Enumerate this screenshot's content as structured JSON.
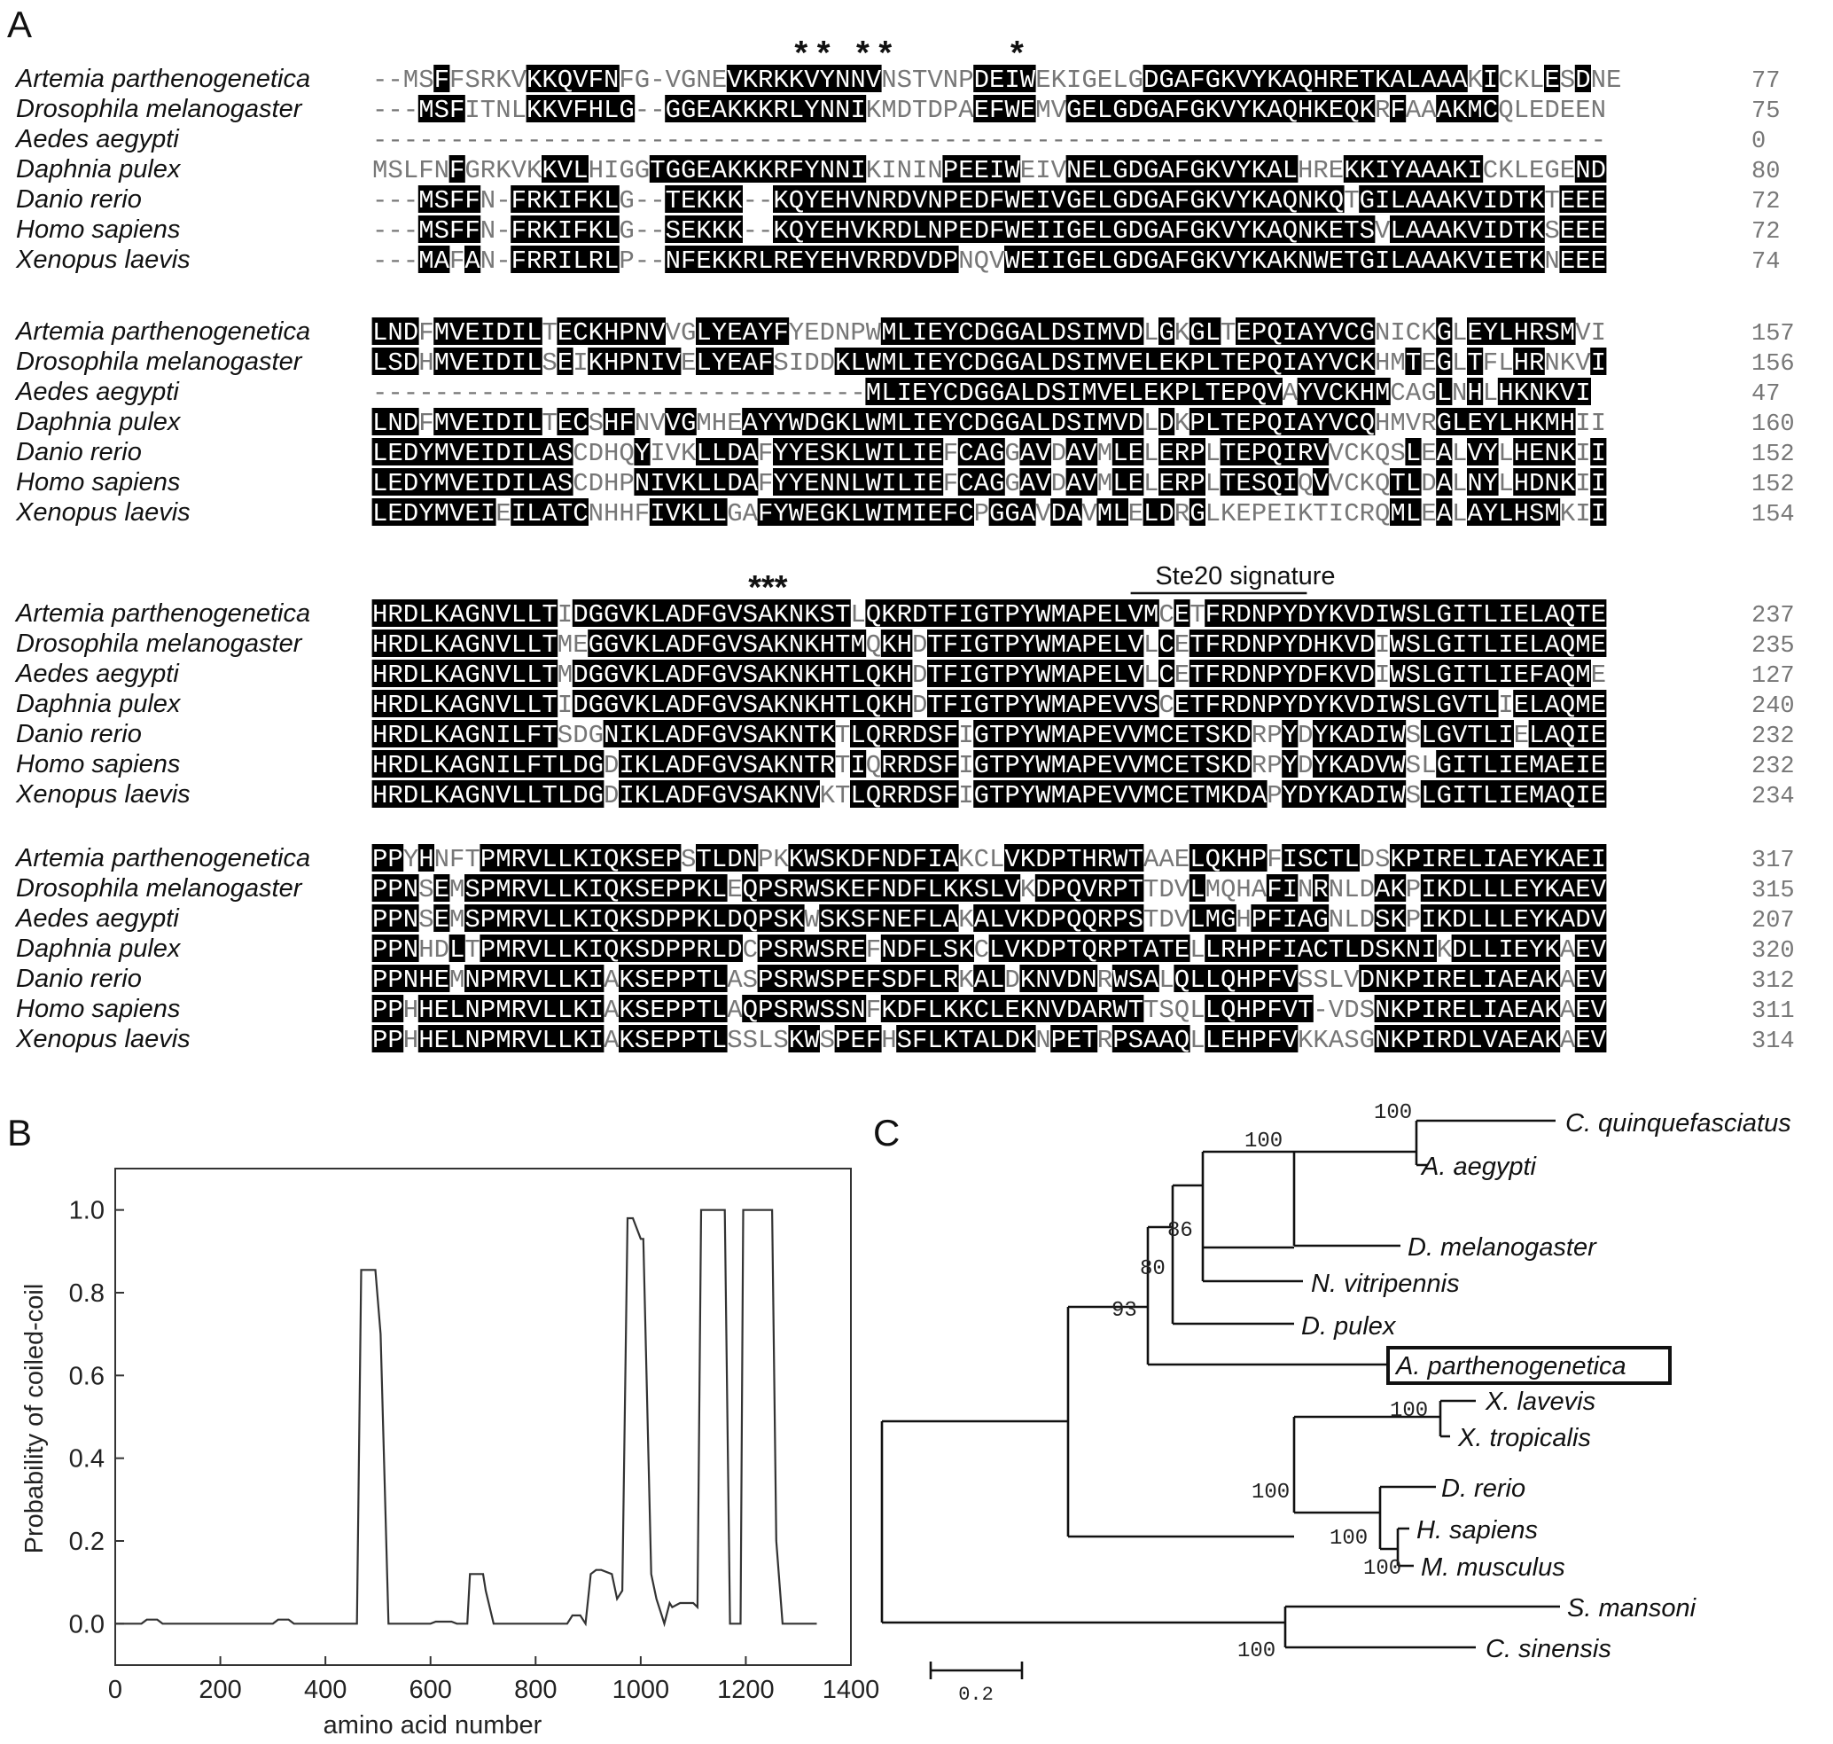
{
  "panels": {
    "a": "A",
    "b": "B",
    "c": "C"
  },
  "alignment": {
    "blocks": [
      {
        "stars": [
          {
            "text": "* *",
            "col": 26
          },
          {
            "text": "* *",
            "col": 30
          },
          {
            "text": "*",
            "col": 40
          }
        ],
        "rows": [
          {
            "species": "Artemia parthenogenetica",
            "seq": "--MSFFSRKVKKQVFNFG-VGNEVKRKKVYNNVNSTVNPDEIWEKIGELGDGAFGKVYKAQHRETKALAAAKICKLESDNE",
            "num": "77",
            "mask": "0000100000111111001000011111111110000001111000000011111111111111111111101000101001"
          },
          {
            "species": "Drosophila melanogaster",
            "seq": "---MSFITNLKKVFHLG--GGEAKKKRLYNNIKMDTDPAEFWEMVGELGDGAFGKVYKAQHKEQKRFAAAKMCQLEDEEN",
            "num": "75",
            "mask": "0001110000111111100111111111111100000001111001111111111111111111101001111000000001"
          },
          {
            "species": "Aedes aegypti",
            "seq": "--------------------------------------------------------------------------------",
            "num": "0",
            "mask": ""
          },
          {
            "species": "Daphnia pulex",
            "seq": "MSLFNFGRKVKKVLHIGGTGGEAKKKRFYNNIKININPEEIWEIVNELGDGAFGKVYKALHREKKIYAAAKICKLEGEND",
            "num": "80",
            "mask": "00000100000111000011111111111111000001111100011111111111111100011111111100000011111"
          },
          {
            "species": "Danio rerio",
            "seq": "---MSFFN-FRKIFKLG--TEKKK--KQYEHVNRDVNPEDFWEIVGELGDGAFGKVYKAQNKQTGILAAAKVIDTKTEEE",
            "num": "72",
            "mask": "00011110111111110011111100111111111111111111111111111111111111101111111111110111111"
          },
          {
            "species": "Homo sapiens",
            "seq": "---MSFFN-FRKIFKLG--SEKKK--KQYEHVKRDLNPEDFWEIIGELGDGAFGKVYKAQNKETSVLAAAKVIDTKSEEE",
            "num": "72",
            "mask": "00011110111111110011111100111111111111111111111111111111111111111011111111110111111"
          },
          {
            "species": "Xenopus laevis",
            "seq": "---MAFAN-FRRILRLP--NFEKKRLREYEHVRRDVDPNQVWEIIGELGDGAFGKVYKAKNWETGILAAAKVIETKNEEE",
            "num": "74",
            "mask": "00011010111111110011111111111111111111000111111111111111111111111111111111110111111"
          }
        ]
      },
      {
        "stars": [],
        "rows": [
          {
            "species": "Artemia parthenogenetica",
            "seq": "LNDFMVEIDILTECKHPNVVGLYEAYFYEDNPWMLIEYCDGGALDSIMVDLGKGLTEPQIAYVCGNICKGLEYLHRSMVI",
            "num": "157",
            "mask": "11101111111011111110011111100000011111111111111111010110111111111000010111111100001"
          },
          {
            "species": "Drosophila melanogaster",
            "seq": "LSDHMVEIDILSEIKHPNIVELYEAFSIDDKLWMLIEYCDGGALDSIMVELEKPLTEPQIAYVCKHMTEGLTFLHRNKVI",
            "num": "156",
            "mask": "11101111111010111111011111000011111111111111111111111111111111111001010100110001"
          },
          {
            "species": "Aedes aegypti",
            "seq": "--------------------------------MLIEYCDGGALDSIMVELEKPLTEPQVAYVCKHMCAGLNHLHKNKVI",
            "num": "47",
            "mask": "00000000000000000000000000000000111111111111111111111111111011111100010101111111"
          },
          {
            "species": "Daphnia pulex",
            "seq": "LNDFMVEIDILTECSHFNVVGMHEAYYWDGKLWMLIEYCDGGALDSIMVDLDKPLTEPQIAYVCQHMVRGLEYLHKMHII",
            "num": "160",
            "mask": "11101111111011011001100011111111111111111111111111010111111111111000011111111100111"
          },
          {
            "species": "Danio rerio",
            "seq": "LEDYMVEIDILASCDHQYIVKLLDAFYYESKLWILIEFCAGGAVDAVMLELERPLTEPQIRVVCKQSLEALVYLHENKII",
            "num": "152",
            "mask": "11111111111110000100011110111111111110111011011011011101111111000001010110111101111"
          },
          {
            "species": "Homo sapiens",
            "seq": "LEDYMVEIDILASCDHPNIVKLLDAFYYENNLWILIEFCAGGAVDAVMLELERPLTESQIQVVCKQTLDALNYLHDNKII",
            "num": "152",
            "mask": "11111111111110000111111110111111111110111011011011011101111101000011010110111101111"
          },
          {
            "species": "Xenopus laevis",
            "seq": "LEDYMVEIEILATCNHHFIVKLLGAFYWEGKLWIMIEFCPGGAVDAVMLELDRGLKEPEIKTICRQMLEALAYLHSMKII",
            "num": "154",
            "mask": "11111111011111000011111001111111111111101110110110110100000000000011010111111001111"
          }
        ]
      },
      {
        "stars": [
          {
            "text": "***",
            "col": 23
          }
        ],
        "signature": {
          "text": "Ste20 signature",
          "col_start": 44,
          "col_end": 56
        },
        "rows": [
          {
            "species": "Artemia parthenogenetica",
            "seq": "HRDLKAGNVLLTIDGGVKLADFGVSAKNKSTLQKRDTFIGTPYWMAPELVMCETFRDNPYDYKVDIWSLGITLIELAQTE",
            "num": "237",
            "mask": "11111111111101111111111111111110111111111111111111101011111111111111111111111111110"
          },
          {
            "species": "Drosophila melanogaster",
            "seq": "HRDLKAGNVLLTMEGGVKLADFGVSAKNKHTMQKHDTFIGTPYWMAPELVLCETFRDNPYDHKVDIWSLGITLIELAQME",
            "num": "235",
            "mask": "11111111111100111111111111111111011011111111111111010111111111111011111111111111111"
          },
          {
            "species": "Aedes aegypti",
            "seq": "HRDLKAGNVLLTMDGGVKLADFGVSAKNKHTLQKHDTFIGTPYWMAPELVLCETFRDNPYDFKVDIWSLGITLIEFAQME",
            "num": "127",
            "mask": "11111111111101111111111111111111111011111111111111010111111111111011111111111110111"
          },
          {
            "species": "Daphnia pulex",
            "seq": "HRDLKAGNVLLTIDGGVKLADFGVSAKNKHTLQKHDTFIGTPYWMAPEVVSCETFRDNPYDYKVDIWSLGVTLIELAQME",
            "num": "240",
            "mask": "11111111111101111111111111111111111011111111111111101111111111111111111110111111111"
          },
          {
            "species": "Danio rerio",
            "seq": "HRDLKAGNILFTSDGNIKLADFGVSAKNTKTLQRRDSFIGTPYWMAPEVVMCETSKDRPYDYKADIWSLGVTLIELAQIE",
            "num": "232",
            "mask": "11111111111100011111111111111101111111011111111111111111100101111110111111011111111"
          },
          {
            "species": "Homo sapiens",
            "seq": "HRDLKAGNILFTLDGDIKLADFGVSAKNTRTIQRRDSFIGTPYWMAPEVVMCETSKDRPYDYKADVWSLGITLIEMAEIE",
            "num": "232",
            "mask": "11111111111111101111111111111101011111011111111111111111100101111110011111111111010"
          },
          {
            "species": "Xenopus laevis",
            "seq": "HRDLKAGNVLLTLDGDIKLADFGVSAKNVKTLQRRDSFIGTPYWMAPEVVMCETMKDAPYDYKADIWSLGITLIEMAQIE",
            "num": "234",
            "mask": "11111111111111101111111111111001111111011111111111111111110111111110111111111111011"
          }
        ]
      },
      {
        "stars": [],
        "rows": [
          {
            "species": "Artemia parthenogenetica",
            "seq": "PPYHNFTPMRVLLKIQKSEPSTLDNPKKWSKDFNDFIAKCLVKDPTHRWTAAELQKHPFISCTLDSKPIRELIAEYKAEI",
            "num": "317",
            "mask": "11010001111111111111011110011111111111000111111111000111110111110011111111111111110"
          },
          {
            "species": "Drosophila melanogaster",
            "seq": "PPNSEMSPMRVLLKIQKSEPPKLEQPSRWSKEFNDFLKKSLVKDPQVRPTTDVLMQHAFINRNLDAKPIKDLLLEYKAEV",
            "num": "315",
            "mask": "11101011111111111111111011111111111111111101111111000100001101000110111111111111111"
          },
          {
            "species": "Aedes aegypti",
            "seq": "PPNSEMSPMRVLLKIQKSDPPKLDQPSKWSKSFNEFLAKALVKDPQQRPSTDVLMGHPFIAGNLDSKPIKDLLLEYKADV",
            "num": "207",
            "mask": "11101011111111111111111111110111111111011111111111000111011111000110111111111111111"
          },
          {
            "species": "Daphnia pulex",
            "seq": "PPNHDLTPMRVLLKIQKSDPPRLDCPSRWSREFNDFLSKCLVKDPTQRPTATELLRHPFIACTLDSKNIKDLLIEYKAEV",
            "num": "320",
            "mask": "11100101111111111111111101111111011111101111111111111011111111111111101111111011111"
          },
          {
            "species": "Danio rerio",
            "seq": "PPNHEMNPMRVLLKIAKSEPPTLASPSRWSPEFSDFLRKALDKNVDNRWSALQLLQHPFVSSLVDNKPIRELIAEAKAEV",
            "num": "312",
            "mask": "11111011111111101111111001111111111111011011111011101111111100001111111111111011111"
          },
          {
            "species": "Homo sapiens",
            "seq": "PPHHELNPMRVLLKIAKSEPPTLAQPSRWSSNFKDFLKKCLEKNVDARWTTSQLLQHPFVT-VDSNKPIRELIAEAKAEV",
            "num": "311",
            "mask": "11011111111111101111111011111111011111111111111111000011111110000111111111111011111"
          },
          {
            "species": "Xenopus laevis",
            "seq": "PPHHELNPMRVLLKIAKSEPPTLSSLSKWSPEFHSFLKTALDKNPETRPSAAQLLEHPFVKKASGNKPIRDLVAEAKAEV",
            "num": "314",
            "mask": "11011111111111101111111000011011101111111110111011111011111100000111111111111011111"
          }
        ]
      }
    ]
  },
  "coil_chart": {
    "chart_data": {
      "type": "line",
      "title": "",
      "xlabel": "amino acid number",
      "ylabel": "Probability of coiled-coil",
      "xlim": [
        0,
        1400
      ],
      "ylim": [
        -0.1,
        1.1
      ],
      "xticks": [
        "0",
        "200",
        "400",
        "600",
        "800",
        "1000",
        "1200",
        "1400"
      ],
      "yticks": [
        "0.0",
        "0.2",
        "0.4",
        "0.6",
        "0.8",
        "1.0"
      ],
      "series": [
        {
          "x": [
            0,
            50,
            60,
            80,
            90,
            300,
            310,
            330,
            340,
            460,
            468,
            495,
            505,
            520,
            600,
            610,
            640,
            650,
            670,
            675,
            700,
            705,
            720,
            860,
            870,
            885,
            895,
            905,
            915,
            925,
            945,
            955,
            960,
            965,
            975,
            985,
            1000,
            1005,
            1020,
            1030,
            1040,
            1045,
            1055,
            1060,
            1075,
            1080,
            1100,
            1108,
            1115,
            1125,
            1160,
            1170,
            1190,
            1195,
            1205,
            1215,
            1250,
            1258,
            1270,
            1335
          ],
          "y": [
            0.0,
            0.0,
            0.01,
            0.01,
            0.0,
            0.0,
            0.01,
            0.01,
            0.0,
            0.0,
            0.855,
            0.855,
            0.7,
            0.0,
            0.0,
            0.005,
            0.005,
            0.0,
            0.0,
            0.12,
            0.12,
            0.08,
            0.0,
            0.0,
            0.02,
            0.02,
            0.0,
            0.12,
            0.13,
            0.13,
            0.12,
            0.06,
            0.07,
            0.08,
            0.98,
            0.98,
            0.93,
            0.93,
            0.12,
            0.06,
            0.02,
            0.0,
            0.05,
            0.04,
            0.05,
            0.05,
            0.05,
            0.04,
            1.0,
            1.0,
            1.0,
            0.0,
            0.0,
            1.0,
            1.0,
            1.0,
            1.0,
            0.2,
            0.0,
            0.0
          ]
        }
      ]
    }
  },
  "tree": {
    "labels": {
      "cq": "C. quinquefasciatus",
      "aa": "A. aegypti",
      "dm": "D. melanogaster",
      "nv": "N. vitripennis",
      "dp": "D. pulex",
      "ap": "A. parthenogenetica",
      "xl": "X. lavevis",
      "xt": "X. tropicalis",
      "dr": "D. rerio",
      "hs": "H. sapiens",
      "mm": "M. musculus",
      "sm": "S. mansoni",
      "cs": "C. sinensis"
    },
    "bootstrap": {
      "b1": "100",
      "b2": "100",
      "b3": "86",
      "b4": "80",
      "b5": "93",
      "b6": "100",
      "b7": "100",
      "b8": "100",
      "b9": "100",
      "b10": "100"
    },
    "scale_label": "0.2"
  }
}
